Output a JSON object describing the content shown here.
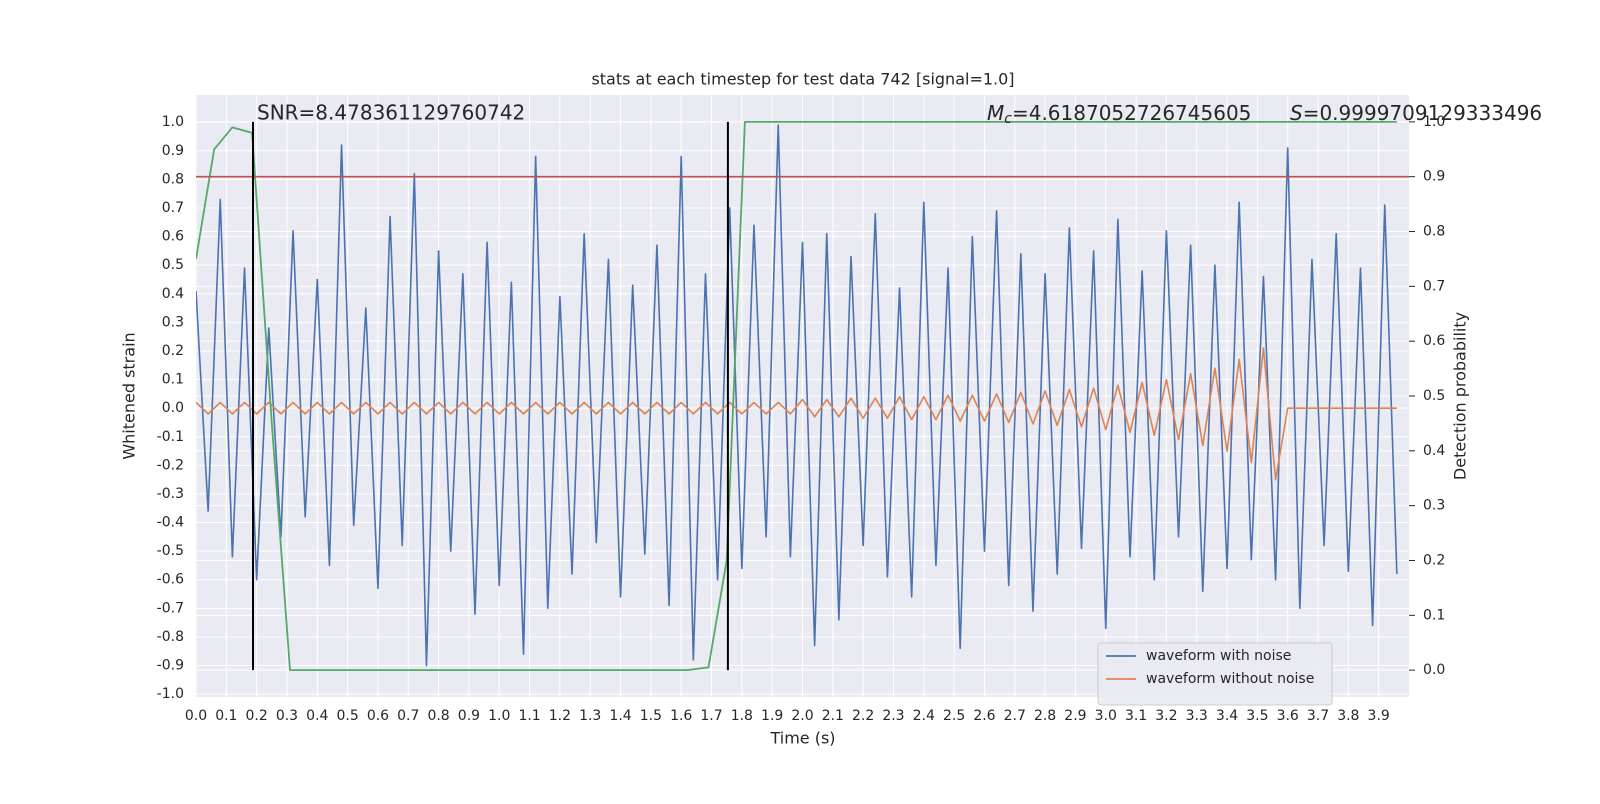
{
  "chart_data": {
    "type": "line",
    "title": "stats at each timestep for test data 742 [signal=1.0]",
    "xlabel": "Time (s)",
    "ylabel": "Whitened strain",
    "y2label": "Detection probability",
    "grid": true,
    "legend": "lower right",
    "xlim": [
      0,
      4.0
    ],
    "ylim": [
      -1.01,
      1.095
    ],
    "y2lim": [
      -0.049,
      1.049
    ],
    "xticks": [
      {
        "value": 0,
        "label": "0.0"
      },
      0.1,
      0.2,
      0.3,
      0.4,
      0.5,
      0.6,
      0.7,
      0.8,
      0.9,
      {
        "value": 1,
        "label": "1.0"
      },
      1.1,
      1.2,
      1.3,
      1.4,
      1.5,
      1.6,
      1.7,
      1.8,
      1.9,
      {
        "value": 2,
        "label": "2.0"
      },
      2.1,
      2.2,
      2.3,
      2.4,
      2.5,
      2.6,
      2.7,
      2.8,
      2.9,
      {
        "value": 3,
        "label": "3.0"
      },
      3.1,
      3.2,
      3.3,
      3.4,
      3.5,
      3.6,
      3.7,
      3.8,
      3.9
    ],
    "yticks": [
      {
        "value": -1,
        "label": "-1.0"
      },
      -0.9,
      -0.8,
      -0.7,
      -0.6,
      -0.5,
      -0.4,
      -0.3,
      -0.2,
      -0.1,
      {
        "value": 0,
        "label": "0.0"
      },
      0.1,
      0.2,
      0.3,
      0.4,
      0.5,
      0.6,
      0.7,
      0.8,
      0.9,
      {
        "value": 1,
        "label": "1.0"
      }
    ],
    "y2ticks": [
      {
        "value": 0,
        "label": "0.0"
      },
      0.1,
      0.2,
      0.3,
      0.4,
      0.5,
      0.6,
      0.7,
      0.8,
      0.9,
      {
        "value": 1,
        "label": "1.0"
      }
    ],
    "x": [
      0,
      0.04,
      0.08,
      0.12,
      0.16,
      0.2,
      0.24,
      0.28,
      0.32,
      0.36,
      0.4,
      0.44,
      0.48,
      0.52,
      0.56,
      0.6,
      0.64,
      0.68,
      0.72,
      0.76,
      0.8,
      0.84,
      0.88,
      0.92,
      0.96,
      1,
      1.04,
      1.08,
      1.12,
      1.16,
      1.2,
      1.24,
      1.28,
      1.32,
      1.36,
      1.4,
      1.44,
      1.48,
      1.52,
      1.56,
      1.6,
      1.64,
      1.68,
      1.72,
      1.76,
      1.8,
      1.84,
      1.88,
      1.92,
      1.96,
      2,
      2.04,
      2.08,
      2.12,
      2.16,
      2.2,
      2.24,
      2.28,
      2.32,
      2.36,
      2.4,
      2.44,
      2.48,
      2.52,
      2.56,
      2.6,
      2.64,
      2.68,
      2.72,
      2.76,
      2.8,
      2.84,
      2.88,
      2.92,
      2.96,
      3,
      3.04,
      3.08,
      3.12,
      3.16,
      3.2,
      3.24,
      3.28,
      3.32,
      3.36,
      3.4,
      3.44,
      3.48,
      3.52,
      3.56,
      3.6,
      3.64,
      3.68,
      3.72,
      3.76,
      3.8,
      3.84,
      3.88,
      3.92,
      3.96
    ],
    "series": [
      {
        "name": "waveform with noise",
        "color": "#4c72b0",
        "values": [
          0.41,
          -0.36,
          0.73,
          -0.52,
          0.49,
          -0.6,
          0.28,
          -0.45,
          0.62,
          -0.38,
          0.45,
          -0.55,
          0.92,
          -0.41,
          0.35,
          -0.63,
          0.67,
          -0.48,
          0.82,
          -0.9,
          0.55,
          -0.5,
          0.47,
          -0.72,
          0.58,
          -0.62,
          0.44,
          -0.86,
          0.88,
          -0.7,
          0.39,
          -0.58,
          0.61,
          -0.47,
          0.52,
          -0.66,
          0.43,
          -0.51,
          0.57,
          -0.69,
          0.88,
          -0.88,
          0.47,
          -0.6,
          0.7,
          -0.56,
          0.64,
          -0.45,
          0.99,
          -0.52,
          0.58,
          -0.83,
          0.61,
          -0.74,
          0.53,
          -0.48,
          0.68,
          -0.59,
          0.42,
          -0.66,
          0.72,
          -0.55,
          0.49,
          -0.84,
          0.6,
          -0.5,
          0.69,
          -0.62,
          0.54,
          -0.71,
          0.47,
          -0.58,
          0.63,
          -0.49,
          0.55,
          -0.77,
          0.66,
          -0.52,
          0.48,
          -0.6,
          0.62,
          -0.45,
          0.57,
          -0.64,
          0.5,
          -0.56,
          0.72,
          -0.53,
          0.46,
          -0.6,
          0.91,
          -0.7,
          0.52,
          -0.48,
          0.61,
          -0.57,
          0.49,
          -0.76,
          0.71,
          -0.58
        ]
      },
      {
        "name": "waveform without noise",
        "color": "#dd8452",
        "values": [
          0.02,
          -0.02,
          0.02,
          -0.02,
          0.02,
          -0.02,
          0.02,
          -0.02,
          0.02,
          -0.02,
          0.02,
          -0.02,
          0.02,
          -0.02,
          0.02,
          -0.02,
          0.02,
          -0.02,
          0.02,
          -0.02,
          0.02,
          -0.02,
          0.02,
          -0.02,
          0.02,
          -0.02,
          0.02,
          -0.02,
          0.02,
          -0.02,
          0.02,
          -0.02,
          0.02,
          -0.02,
          0.02,
          -0.02,
          0.02,
          -0.02,
          0.02,
          -0.02,
          0.02,
          -0.02,
          0.02,
          -0.02,
          0.02,
          -0.02,
          0.02,
          -0.02,
          0.02,
          -0.02,
          0.03,
          -0.03,
          0.03,
          -0.03,
          0.035,
          -0.035,
          0.035,
          -0.035,
          0.04,
          -0.04,
          0.04,
          -0.04,
          0.045,
          -0.045,
          0.045,
          -0.045,
          0.05,
          -0.05,
          0.055,
          -0.055,
          0.06,
          -0.06,
          0.065,
          -0.065,
          0.07,
          -0.075,
          0.08,
          -0.085,
          0.09,
          -0.095,
          0.1,
          -0.11,
          0.12,
          -0.13,
          0.14,
          -0.15,
          0.17,
          -0.19,
          0.21,
          -0.25,
          0,
          0,
          0,
          0,
          0,
          0,
          0,
          0,
          0,
          0
        ]
      },
      {
        "color": "#55a868",
        "axis": "y2",
        "x": [
          0,
          0.06,
          0.12,
          0.185,
          0.25,
          0.31,
          1.62,
          1.69,
          1.75,
          1.81,
          3.96
        ],
        "values": [
          0.75,
          0.95,
          0.99,
          0.98,
          0.45,
          0,
          0,
          0.005,
          0.2,
          1,
          1
        ]
      }
    ],
    "threshold": {
      "value": 0.9,
      "axis": "y2",
      "color": "#c44e52"
    },
    "event_lines": {
      "x": [
        0.188,
        1.754
      ],
      "color": "#000000"
    },
    "annotations": {
      "snr": "SNR=8.478361129760742",
      "mc": {
        "symbol": "M",
        "subscript": "c",
        "text": "=4.6187052726745605"
      },
      "s": {
        "symbol": "S",
        "text": "=0.9999709129333496"
      }
    }
  }
}
